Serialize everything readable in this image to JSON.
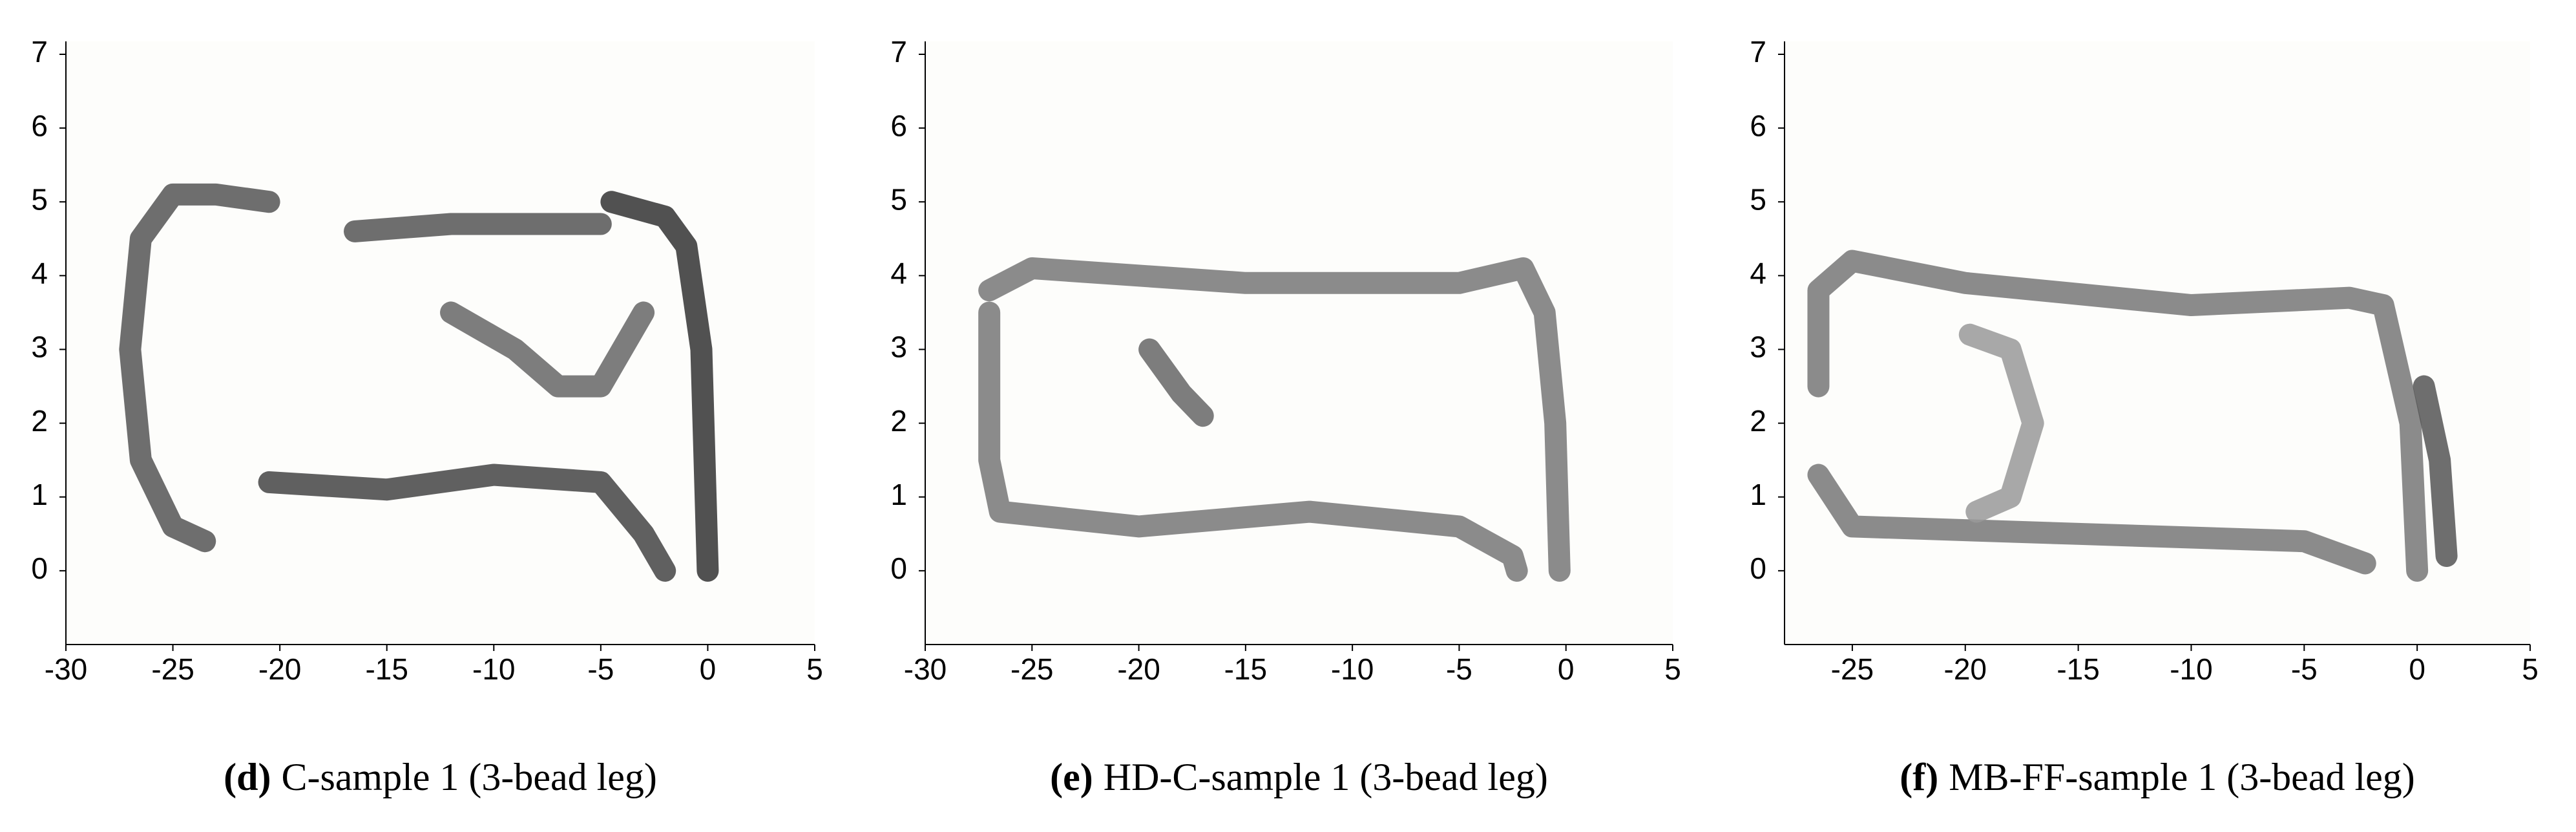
{
  "chart_data": [
    {
      "type": "line",
      "label": "(d)",
      "caption": "C-sample 1 (3-bead leg)",
      "xlim": [
        -30,
        5
      ],
      "ylim": [
        -1,
        7
      ],
      "xticks": [
        -30,
        -25,
        -20,
        -15,
        -10,
        -5,
        0,
        5
      ],
      "yticks": [
        0,
        1,
        2,
        3,
        4,
        5,
        6,
        7
      ],
      "series": [
        {
          "color": "#555555",
          "x": [
            -20.5,
            -23,
            -25,
            -26.5,
            -27,
            -26.5,
            -25,
            -23.5
          ],
          "values": [
            5,
            5.1,
            5.1,
            4.5,
            3,
            1.5,
            0.6,
            0.4
          ]
        },
        {
          "color": "#555555",
          "x": [
            -16.5,
            -12,
            -8,
            -5
          ],
          "values": [
            4.6,
            4.7,
            4.7,
            4.7
          ]
        },
        {
          "color": "#444444",
          "x": [
            -20.5,
            -15,
            -10,
            -5,
            -3,
            -2
          ],
          "values": [
            1.2,
            1.1,
            1.3,
            1.2,
            0.5,
            0
          ]
        },
        {
          "color": "#333333",
          "x": [
            -4.5,
            -2,
            -1,
            -0.3,
            0
          ],
          "values": [
            5,
            4.8,
            4.4,
            3,
            0
          ]
        },
        {
          "color": "#666666",
          "x": [
            -12,
            -9,
            -7,
            -5,
            -3
          ],
          "values": [
            3.5,
            3,
            2.5,
            2.5,
            3.5
          ]
        }
      ]
    },
    {
      "type": "line",
      "label": "(e)",
      "caption": "HD-C-sample 1 (3-bead leg)",
      "xlim": [
        -30,
        5
      ],
      "ylim": [
        -1,
        7
      ],
      "xticks": [
        -30,
        -25,
        -20,
        -15,
        -10,
        -5,
        0,
        5
      ],
      "yticks": [
        0,
        1,
        2,
        3,
        4,
        5,
        6,
        7
      ],
      "series": [
        {
          "color": "#777777",
          "x": [
            -27,
            -25,
            -15,
            -5,
            -2,
            -1,
            -0.5,
            -0.3
          ],
          "values": [
            3.8,
            4.1,
            3.9,
            3.9,
            4.1,
            3.5,
            2,
            0
          ]
        },
        {
          "color": "#777777",
          "x": [
            -27,
            -27,
            -26.5,
            -20,
            -12,
            -5,
            -2.5,
            -2.3
          ],
          "values": [
            3.5,
            1.5,
            0.8,
            0.6,
            0.8,
            0.6,
            0.2,
            0
          ]
        },
        {
          "color": "#666666",
          "x": [
            -19.5,
            -18,
            -17
          ],
          "values": [
            3,
            2.4,
            2.1
          ]
        }
      ]
    },
    {
      "type": "line",
      "label": "(f)",
      "caption": "MB-FF-sample 1 (3-bead leg)",
      "xlim": [
        -28,
        5
      ],
      "ylim": [
        -1,
        7
      ],
      "xticks": [
        -25,
        -20,
        -15,
        -10,
        -5,
        0,
        5
      ],
      "yticks": [
        0,
        1,
        2,
        3,
        4,
        5,
        6,
        7
      ],
      "series": [
        {
          "color": "#777777",
          "x": [
            -26.5,
            -26.5,
            -25,
            -20,
            -10,
            -3,
            -1.5,
            -0.3,
            0
          ],
          "values": [
            2.5,
            3.8,
            4.2,
            3.9,
            3.6,
            3.7,
            3.6,
            2,
            0
          ]
        },
        {
          "color": "#777777",
          "x": [
            -26.5,
            -25,
            -15,
            -5,
            -2.3
          ],
          "values": [
            1.3,
            0.6,
            0.5,
            0.4,
            0.1
          ]
        },
        {
          "color": "#999999",
          "x": [
            -19.8,
            -18,
            -17,
            -18,
            -19.5
          ],
          "values": [
            3.2,
            3,
            2,
            1,
            0.8
          ]
        },
        {
          "color": "#555555",
          "x": [
            0.3,
            1,
            1.3
          ],
          "values": [
            2.5,
            1.5,
            0.2
          ]
        }
      ]
    }
  ]
}
